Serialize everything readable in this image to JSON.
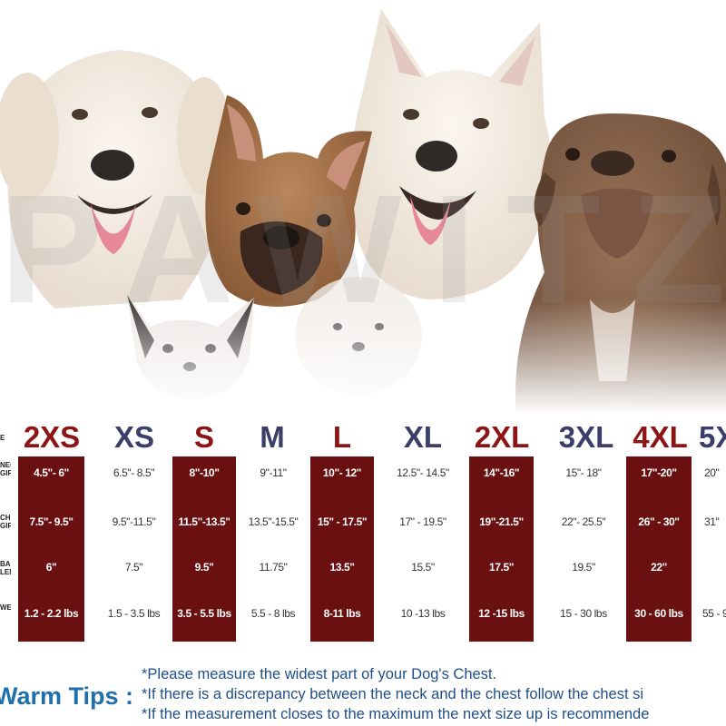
{
  "watermark": "PAWITZ",
  "size_headers": [
    "2XS",
    "XS",
    "S",
    "M",
    "L",
    "XL",
    "2XL",
    "3XL",
    "4XL",
    "5X"
  ],
  "row_labels": [
    "NECK GIRTH",
    "CHEST GIRTH",
    "BACK LENGTH",
    "WEIGHT"
  ],
  "size_label_partial": "E",
  "columns": [
    {
      "size": "2XS",
      "highlight": true,
      "neck": "4.5\"- 6\"",
      "chest": "7.5\"- 9.5\"",
      "back": "6\"",
      "weight": "1.2 - 2.2 lbs"
    },
    {
      "size": "XS",
      "highlight": false,
      "neck": "6.5\"- 8.5\"",
      "chest": "9.5\"-11.5\"",
      "back": "7.5\"",
      "weight": "1.5 - 3.5 lbs"
    },
    {
      "size": "S",
      "highlight": true,
      "neck": "8\"-10\"",
      "chest": "11.5\"-13.5\"",
      "back": "9.5\"",
      "weight": "3.5 - 5.5 lbs"
    },
    {
      "size": "M",
      "highlight": false,
      "neck": "9\"-11\"",
      "chest": "13.5\"-15.5\"",
      "back": "11.75\"",
      "weight": "5.5 - 8 lbs"
    },
    {
      "size": "L",
      "highlight": true,
      "neck": "10\"- 12\"",
      "chest": "15\" - 17.5\"",
      "back": "13.5\"",
      "weight": "8-11 lbs"
    },
    {
      "size": "XL",
      "highlight": false,
      "neck": "12.5\"- 14.5\"",
      "chest": "17\" - 19.5\"",
      "back": "15.5\"",
      "weight": "10 -13 lbs"
    },
    {
      "size": "2XL",
      "highlight": true,
      "neck": "14\"-16\"",
      "chest": "19\"-21.5\"",
      "back": "17.5\"",
      "weight": "12 -15 lbs"
    },
    {
      "size": "3XL",
      "highlight": false,
      "neck": "15\"- 18\"",
      "chest": "22\"- 25.5\"",
      "back": "19.5\"",
      "weight": "15 - 30 lbs"
    },
    {
      "size": "4XL",
      "highlight": true,
      "neck": "17\"-20\"",
      "chest": "26\" - 30\"",
      "back": "22\"",
      "weight": "30 - 60 lbs"
    },
    {
      "size": "5X",
      "highlight": false,
      "neck": "20\"",
      "chest": "31\"",
      "back": "",
      "weight": "55 - 9"
    }
  ],
  "tips": {
    "title": "Warm Tips :",
    "lines": [
      "*Please measure the widest part of your Dog's Chest.",
      "*If there is a discrepancy between the neck and the chest  follow the chest si",
      "*If the measurement closes to the maximum the next size up is recommende"
    ]
  },
  "colors": {
    "highlight_column": "#6a1010",
    "size_red": "#8c1414",
    "size_navy": "#3b3e68",
    "tips_title": "#1f6fa8",
    "tips_text": "#1f4f86"
  }
}
